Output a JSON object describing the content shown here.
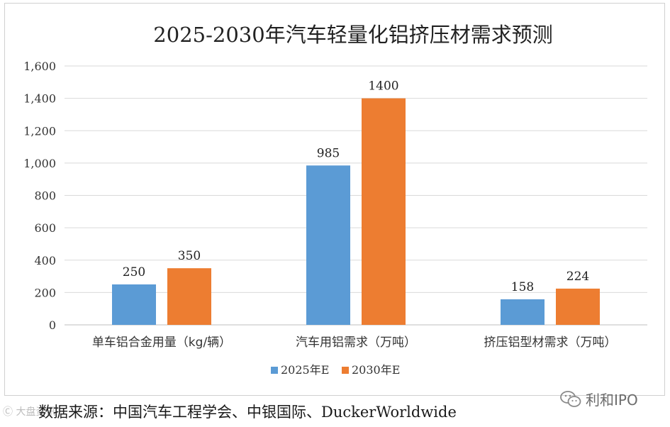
{
  "chart_data": {
    "type": "bar",
    "title": "2025-2030年汽车轻量化铝挤压材需求预测",
    "categories": [
      "单车铝合金用量（kg/辆）",
      "汽车用铝需求（万吨）",
      "挤压铝型材需求（万吨）"
    ],
    "series": [
      {
        "name": "2025年E",
        "values": [
          250,
          985,
          158
        ],
        "color": "#5b9bd5",
        "labels": [
          "250",
          "985",
          "158"
        ]
      },
      {
        "name": "2030年E",
        "values": [
          350,
          1400,
          224
        ],
        "color": "#ed7d31",
        "labels": [
          "350",
          "1400",
          "224"
        ]
      }
    ],
    "ylim": [
      0,
      1600
    ],
    "yticks": [
      "0",
      "200",
      "400",
      "600",
      "800",
      "1,000",
      "1,200",
      "1,400",
      "1,600"
    ],
    "grid": true,
    "legend": "bottom"
  },
  "source": "数据来源：中国汽车工程学会、中银国际、DuckerWorldwide",
  "watermark": {
    "brand": "利和IPO",
    "icon": "wechat-icon",
    "left_mark": "Ⓒ 大盘资讯"
  }
}
